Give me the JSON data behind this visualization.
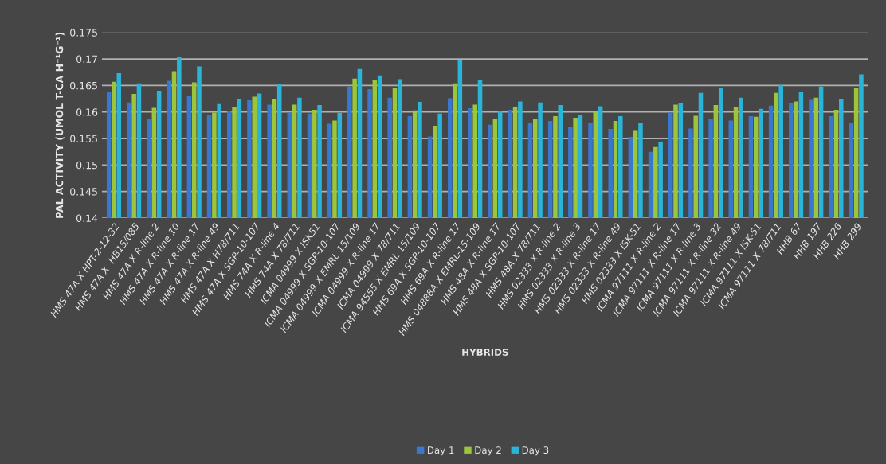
{
  "chart_data": {
    "type": "bar",
    "xlabel": "HYBRIDS",
    "ylabel": "PAL ACTIVITY (UMOL T-CA H⁻¹G⁻¹)",
    "categories": [
      "HMS 47A X HPT-2-12-32",
      "HMS 47A X  HB15/085",
      "HMS 47A X R-line 2",
      "HMS 47A X R-line 10",
      "HMS 47A X R-line 17",
      "HMS 47A X R-line 49",
      "HMS 47A X H78/711",
      "HMS 47A X SGP-10-107",
      "HMS 74A X R-line 4",
      "HMS 74A X 78/711",
      "ICMA 04999 X ISK51",
      "ICMA 04999 X SGP-10-107",
      "ICMA 04999 X EMRL 15/109",
      "ICMA 04999 X R-line 17",
      "ICMA 04999 X 78/711",
      "ICMA 94555 X EMRL 15/109",
      "HMS 69A X SGP-10-107",
      "HMS 69A X R-line 17",
      "HMS 04888A X EMRL-15-109",
      "HMS 48A X R-line 17",
      "HMS 48A X SGP-10-107",
      "HMS 48A X 78/711",
      "HMS 02333 X R-line 2",
      "HMS 02333 X R-line 3",
      "HMS 02333 X R-line 17",
      "HMS 02333 X R-line 49",
      "HMS 02333 X ISK-51",
      "ICMA 97111 X R-line 2",
      "ICMA 97111 X R-line 17",
      "ICMA 97111 X R-line 3",
      "ICMA 97111 X R-line 32",
      "ICMA 97111 X R-line 49",
      "ICMA 97111 X ISK-51",
      "ICMA 97111 X 78/711",
      "HHB 67",
      "HHB 197",
      "HHB 226",
      "HHB 299"
    ],
    "series": [
      {
        "name": "Day 1",
        "color": "#3a78d0",
        "values": [
          0.1637,
          0.1618,
          0.1587,
          0.1659,
          0.1631,
          0.1595,
          0.1601,
          0.1622,
          0.1614,
          0.1599,
          0.1597,
          0.1578,
          0.1648,
          0.1643,
          0.1627,
          0.1592,
          0.1554,
          0.1626,
          0.1607,
          0.1576,
          0.1604,
          0.158,
          0.1583,
          0.1571,
          0.158,
          0.1568,
          0.1553,
          0.1525,
          0.1599,
          0.1569,
          0.1587,
          0.1584,
          0.1592,
          0.1612,
          0.1616,
          0.1623,
          0.1592,
          0.158
        ]
      },
      {
        "name": "Day 2",
        "color": "#9bc53a",
        "values": [
          0.1657,
          0.1634,
          0.1608,
          0.1677,
          0.1656,
          0.1599,
          0.1609,
          0.1629,
          0.1624,
          0.1614,
          0.1604,
          0.1584,
          0.1663,
          0.1661,
          0.1646,
          0.1603,
          0.1574,
          0.1654,
          0.1614,
          0.1586,
          0.1609,
          0.1586,
          0.1592,
          0.1589,
          0.16,
          0.1583,
          0.1566,
          0.1534,
          0.1614,
          0.1593,
          0.1613,
          0.1609,
          0.1591,
          0.1636,
          0.162,
          0.1627,
          0.1604,
          0.1645
        ]
      },
      {
        "name": "Day 3",
        "color": "#2ab4d8",
        "values": [
          0.1673,
          0.1654,
          0.164,
          0.1704,
          0.1686,
          0.1615,
          0.1625,
          0.1635,
          0.1653,
          0.1627,
          0.1613,
          0.1598,
          0.1681,
          0.1669,
          0.1662,
          0.1619,
          0.1597,
          0.1697,
          0.1661,
          0.1602,
          0.162,
          0.1618,
          0.1613,
          0.1595,
          0.1611,
          0.1592,
          0.158,
          0.1544,
          0.1616,
          0.1636,
          0.1645,
          0.1627,
          0.1606,
          0.1651,
          0.1637,
          0.1648,
          0.1624,
          0.1671
        ]
      }
    ],
    "ylim": [
      0.14,
      0.175
    ],
    "yticks": [
      0.14,
      0.145,
      0.15,
      0.155,
      0.16,
      0.165,
      0.17,
      0.175
    ],
    "grid": "y",
    "legend": "bottom"
  }
}
